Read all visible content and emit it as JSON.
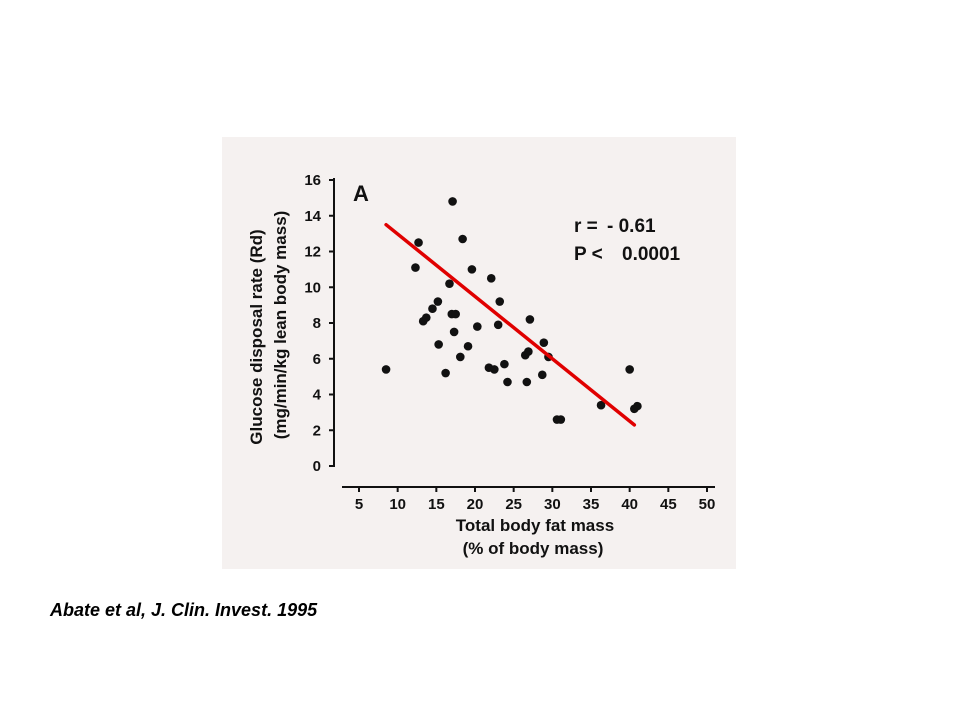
{
  "citation": "Abate et al, J. Clin. Invest. 1995",
  "chart_data": {
    "type": "scatter",
    "panel_label": "A",
    "xlabel": [
      "Total body fat mass",
      "(% of body mass)"
    ],
    "ylabel": [
      "Glucose disposal rate (Rd)",
      "(mg/min/kg lean body mass)"
    ],
    "xlim": [
      5,
      50
    ],
    "ylim": [
      0,
      16
    ],
    "x_ticks": [
      5,
      10,
      15,
      20,
      25,
      30,
      35,
      40,
      45,
      50
    ],
    "y_ticks": [
      0,
      2,
      4,
      6,
      8,
      10,
      12,
      14,
      16
    ],
    "annotations": {
      "r_label": "r =",
      "r_value": "- 0.61",
      "p_label": "P <",
      "p_value": "0.0001"
    },
    "regression_line": {
      "color": "#e00000",
      "start": {
        "x": 8.5,
        "y": 13.5
      },
      "end": {
        "x": 40.6,
        "y": 2.3
      }
    },
    "points": [
      {
        "x": 8.5,
        "y": 5.4
      },
      {
        "x": 12.3,
        "y": 11.1
      },
      {
        "x": 12.7,
        "y": 12.5
      },
      {
        "x": 13.3,
        "y": 8.1
      },
      {
        "x": 13.7,
        "y": 8.3
      },
      {
        "x": 14.5,
        "y": 8.8
      },
      {
        "x": 15.2,
        "y": 9.2
      },
      {
        "x": 15.3,
        "y": 6.8
      },
      {
        "x": 16.2,
        "y": 5.2
      },
      {
        "x": 16.7,
        "y": 10.2
      },
      {
        "x": 17.0,
        "y": 8.5
      },
      {
        "x": 17.1,
        "y": 14.8
      },
      {
        "x": 17.3,
        "y": 7.5
      },
      {
        "x": 17.5,
        "y": 8.5
      },
      {
        "x": 18.1,
        "y": 6.1
      },
      {
        "x": 18.4,
        "y": 12.7
      },
      {
        "x": 19.1,
        "y": 6.7
      },
      {
        "x": 19.6,
        "y": 11.0
      },
      {
        "x": 20.3,
        "y": 7.8
      },
      {
        "x": 21.8,
        "y": 5.5
      },
      {
        "x": 22.1,
        "y": 10.5
      },
      {
        "x": 22.5,
        "y": 5.4
      },
      {
        "x": 23.0,
        "y": 7.9
      },
      {
        "x": 23.2,
        "y": 9.2
      },
      {
        "x": 23.8,
        "y": 5.7
      },
      {
        "x": 24.2,
        "y": 4.7
      },
      {
        "x": 26.5,
        "y": 6.2
      },
      {
        "x": 26.7,
        "y": 4.7
      },
      {
        "x": 26.9,
        "y": 6.4
      },
      {
        "x": 27.1,
        "y": 8.2
      },
      {
        "x": 28.7,
        "y": 5.1
      },
      {
        "x": 28.9,
        "y": 6.9
      },
      {
        "x": 29.5,
        "y": 6.1
      },
      {
        "x": 30.6,
        "y": 2.6
      },
      {
        "x": 31.1,
        "y": 2.6
      },
      {
        "x": 36.3,
        "y": 3.4
      },
      {
        "x": 40.0,
        "y": 5.4
      },
      {
        "x": 40.6,
        "y": 3.2
      },
      {
        "x": 41.0,
        "y": 3.35
      }
    ]
  }
}
